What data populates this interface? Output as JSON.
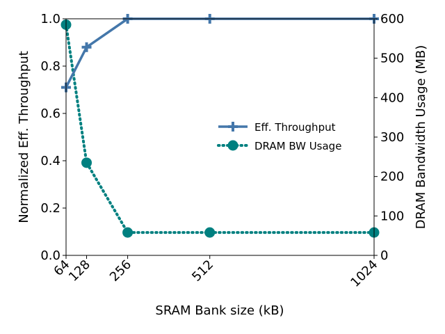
{
  "chart_data": {
    "type": "line",
    "x": [
      64,
      128,
      256,
      512,
      1024
    ],
    "xticklabels": [
      "64",
      "128",
      "256",
      "512",
      "1024"
    ],
    "xlabel": "SRAM Bank size (kB)",
    "xlim": [
      64,
      1024
    ],
    "series": [
      {
        "name": "Eff. Throughput",
        "axis": "left",
        "values": [
          0.71,
          0.88,
          1.0,
          1.0,
          1.0
        ],
        "color": "#4477aa",
        "style": "solid",
        "marker": "plus"
      },
      {
        "name": "DRAM BW Usage",
        "axis": "right",
        "values": [
          585,
          235,
          58,
          58,
          58
        ],
        "color": "#008080",
        "style": "dotted",
        "marker": "circle"
      }
    ],
    "ylabel_left": "Normalized Eff. Throughput",
    "ylim_left": [
      0,
      1.0
    ],
    "yticks_left": [
      "0.0",
      "0.2",
      "0.4",
      "0.6",
      "0.8",
      "1.0"
    ],
    "ylabel_right": "DRAM Bandwidth Usage (MB)",
    "ylim_right": [
      0,
      600
    ],
    "yticks_right": [
      "0",
      "100",
      "200",
      "300",
      "400",
      "500",
      "600"
    ],
    "legend_position": "center-right",
    "grid": false
  }
}
